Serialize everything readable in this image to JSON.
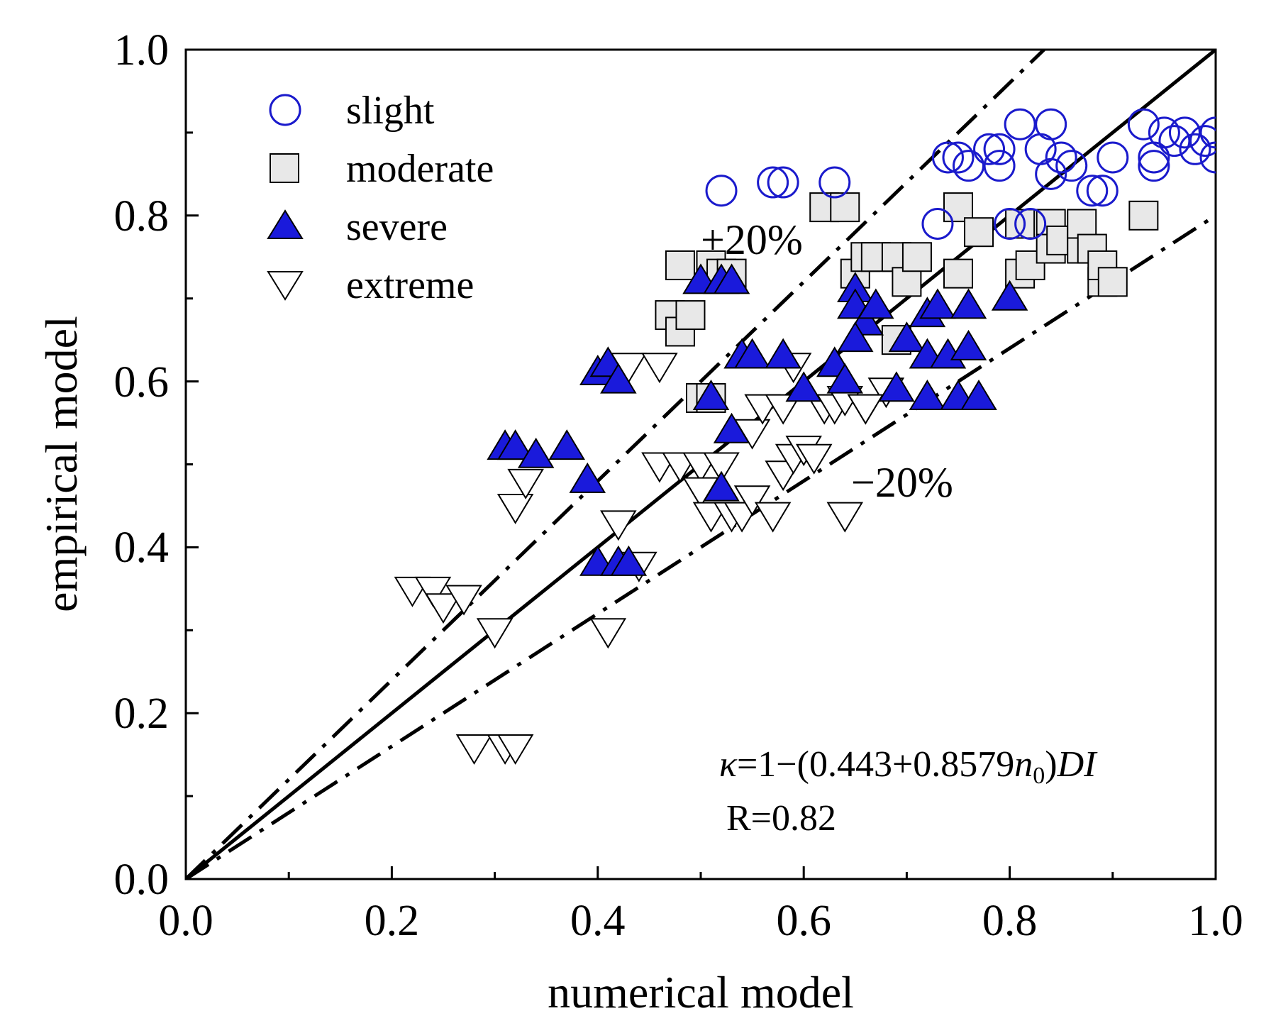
{
  "chart_data": {
    "type": "scatter",
    "xlabel": "numerical model",
    "ylabel": "empirical model",
    "xlim": [
      0,
      1
    ],
    "ylim": [
      0,
      1
    ],
    "x_ticks": [
      "0.0",
      "0.2",
      "0.4",
      "0.6",
      "0.8",
      "1.0"
    ],
    "y_ticks": [
      "0.0",
      "0.2",
      "0.4",
      "0.6",
      "0.8",
      "1.0"
    ],
    "lines": [
      {
        "name": "1:1",
        "slope": 1.0,
        "style": "solid"
      },
      {
        "name": "+20%",
        "slope": 1.2,
        "style": "dash-dot"
      },
      {
        "name": "-20%",
        "slope": 0.8,
        "style": "dash-dot"
      }
    ],
    "band_labels": {
      "upper": "+20%",
      "lower": "−20%"
    },
    "annotation": {
      "kappa": "κ",
      "eq_mid": "=1−(0.443+0.8579",
      "n": "n",
      "sub": "0",
      "eq_end": ")",
      "di": "DI",
      "r": "R=0.82"
    },
    "legend_position": "top-left",
    "series": [
      {
        "name": "slight",
        "marker": "circle-open",
        "color": "#1a1acc",
        "points": [
          [
            0.52,
            0.83
          ],
          [
            0.57,
            0.84
          ],
          [
            0.58,
            0.84
          ],
          [
            0.63,
            0.84
          ],
          [
            0.73,
            0.79
          ],
          [
            0.74,
            0.87
          ],
          [
            0.75,
            0.87
          ],
          [
            0.76,
            0.86
          ],
          [
            0.78,
            0.88
          ],
          [
            0.79,
            0.86
          ],
          [
            0.79,
            0.88
          ],
          [
            0.8,
            0.79
          ],
          [
            0.81,
            0.91
          ],
          [
            0.82,
            0.79
          ],
          [
            0.83,
            0.88
          ],
          [
            0.84,
            0.85
          ],
          [
            0.84,
            0.91
          ],
          [
            0.85,
            0.87
          ],
          [
            0.86,
            0.86
          ],
          [
            0.88,
            0.83
          ],
          [
            0.89,
            0.83
          ],
          [
            0.9,
            0.87
          ],
          [
            0.93,
            0.91
          ],
          [
            0.94,
            0.86
          ],
          [
            0.94,
            0.87
          ],
          [
            0.95,
            0.9
          ],
          [
            0.96,
            0.89
          ],
          [
            0.97,
            0.9
          ],
          [
            0.98,
            0.88
          ],
          [
            0.99,
            0.89
          ],
          [
            1.0,
            0.9
          ],
          [
            1.0,
            0.87
          ]
        ]
      },
      {
        "name": "moderate",
        "marker": "square",
        "color": "#e8e8e8",
        "points": [
          [
            0.47,
            0.68
          ],
          [
            0.48,
            0.66
          ],
          [
            0.49,
            0.68
          ],
          [
            0.48,
            0.74
          ],
          [
            0.5,
            0.58
          ],
          [
            0.51,
            0.58
          ],
          [
            0.51,
            0.74
          ],
          [
            0.52,
            0.73
          ],
          [
            0.53,
            0.73
          ],
          [
            0.62,
            0.81
          ],
          [
            0.64,
            0.81
          ],
          [
            0.65,
            0.73
          ],
          [
            0.66,
            0.75
          ],
          [
            0.67,
            0.75
          ],
          [
            0.69,
            0.65
          ],
          [
            0.69,
            0.75
          ],
          [
            0.7,
            0.72
          ],
          [
            0.71,
            0.75
          ],
          [
            0.75,
            0.73
          ],
          [
            0.75,
            0.81
          ],
          [
            0.77,
            0.78
          ],
          [
            0.81,
            0.79
          ],
          [
            0.81,
            0.73
          ],
          [
            0.82,
            0.74
          ],
          [
            0.84,
            0.79
          ],
          [
            0.84,
            0.76
          ],
          [
            0.85,
            0.77
          ],
          [
            0.87,
            0.76
          ],
          [
            0.87,
            0.79
          ],
          [
            0.88,
            0.76
          ],
          [
            0.89,
            0.72
          ],
          [
            0.89,
            0.74
          ],
          [
            0.9,
            0.72
          ],
          [
            0.93,
            0.8
          ]
        ]
      },
      {
        "name": "severe",
        "marker": "triangle-up",
        "color": "#1a1adb",
        "points": [
          [
            0.31,
            0.52
          ],
          [
            0.32,
            0.52
          ],
          [
            0.34,
            0.51
          ],
          [
            0.37,
            0.52
          ],
          [
            0.39,
            0.48
          ],
          [
            0.4,
            0.61
          ],
          [
            0.41,
            0.62
          ],
          [
            0.42,
            0.6
          ],
          [
            0.4,
            0.38
          ],
          [
            0.42,
            0.38
          ],
          [
            0.43,
            0.38
          ],
          [
            0.5,
            0.72
          ],
          [
            0.52,
            0.72
          ],
          [
            0.53,
            0.72
          ],
          [
            0.51,
            0.58
          ],
          [
            0.52,
            0.47
          ],
          [
            0.53,
            0.54
          ],
          [
            0.54,
            0.63
          ],
          [
            0.55,
            0.63
          ],
          [
            0.58,
            0.63
          ],
          [
            0.6,
            0.59
          ],
          [
            0.63,
            0.62
          ],
          [
            0.64,
            0.6
          ],
          [
            0.65,
            0.71
          ],
          [
            0.65,
            0.69
          ],
          [
            0.66,
            0.67
          ],
          [
            0.65,
            0.65
          ],
          [
            0.67,
            0.69
          ],
          [
            0.69,
            0.59
          ],
          [
            0.7,
            0.65
          ],
          [
            0.72,
            0.63
          ],
          [
            0.72,
            0.68
          ],
          [
            0.73,
            0.69
          ],
          [
            0.72,
            0.58
          ],
          [
            0.74,
            0.63
          ],
          [
            0.75,
            0.58
          ],
          [
            0.76,
            0.64
          ],
          [
            0.76,
            0.69
          ],
          [
            0.77,
            0.58
          ],
          [
            0.8,
            0.7
          ]
        ]
      },
      {
        "name": "extreme",
        "marker": "triangle-down",
        "color": "#ffffff",
        "points": [
          [
            0.22,
            0.35
          ],
          [
            0.24,
            0.35
          ],
          [
            0.25,
            0.33
          ],
          [
            0.27,
            0.34
          ],
          [
            0.28,
            0.16
          ],
          [
            0.3,
            0.3
          ],
          [
            0.31,
            0.16
          ],
          [
            0.32,
            0.16
          ],
          [
            0.32,
            0.45
          ],
          [
            0.33,
            0.48
          ],
          [
            0.41,
            0.3
          ],
          [
            0.42,
            0.43
          ],
          [
            0.44,
            0.38
          ],
          [
            0.43,
            0.62
          ],
          [
            0.46,
            0.62
          ],
          [
            0.46,
            0.5
          ],
          [
            0.48,
            0.5
          ],
          [
            0.5,
            0.5
          ],
          [
            0.5,
            0.47
          ],
          [
            0.51,
            0.44
          ],
          [
            0.52,
            0.5
          ],
          [
            0.53,
            0.44
          ],
          [
            0.54,
            0.44
          ],
          [
            0.55,
            0.46
          ],
          [
            0.55,
            0.54
          ],
          [
            0.56,
            0.57
          ],
          [
            0.57,
            0.44
          ],
          [
            0.58,
            0.49
          ],
          [
            0.58,
            0.57
          ],
          [
            0.59,
            0.51
          ],
          [
            0.6,
            0.52
          ],
          [
            0.61,
            0.51
          ],
          [
            0.62,
            0.57
          ],
          [
            0.63,
            0.57
          ],
          [
            0.64,
            0.58
          ],
          [
            0.64,
            0.44
          ],
          [
            0.66,
            0.57
          ],
          [
            0.68,
            0.59
          ],
          [
            0.59,
            0.62
          ],
          [
            0.66,
            0.57
          ]
        ]
      }
    ]
  }
}
